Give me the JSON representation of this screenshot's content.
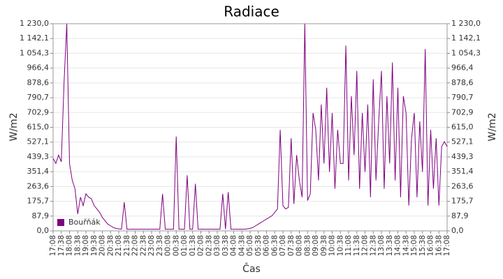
{
  "chart_data": {
    "type": "line",
    "title": "Radiace",
    "x_label": "Čas",
    "y_label": "W/m2",
    "y2_label": "W/m2",
    "categories": [
      "17:08",
      null,
      null,
      "17:38",
      null,
      null,
      "18:08",
      null,
      null,
      "18:38",
      null,
      null,
      "19:08",
      null,
      null,
      "19:38",
      null,
      null,
      "20:08",
      null,
      null,
      "20:38",
      null,
      null,
      "21:08",
      null,
      null,
      "21:38",
      null,
      null,
      "22:08",
      null,
      null,
      "22:38",
      null,
      null,
      "23:08",
      null,
      null,
      "23:38",
      null,
      null,
      "00:08",
      null,
      null,
      "00:38",
      null,
      null,
      "01:08",
      null,
      null,
      "01:38",
      null,
      null,
      "02:08",
      null,
      null,
      "02:38",
      null,
      null,
      "03:08",
      null,
      null,
      "03:38",
      null,
      null,
      "04:08",
      null,
      null,
      "04:38",
      null,
      null,
      "05:08",
      null,
      null,
      "05:38",
      null,
      null,
      "06:08",
      null,
      null,
      "06:38",
      null,
      null,
      "07:08",
      null,
      null,
      "07:38",
      null,
      null,
      "08:08",
      null,
      null,
      "08:38",
      null,
      null,
      "09:08",
      null,
      null,
      "09:38",
      null,
      null,
      "10:08",
      null,
      null,
      "10:38",
      null,
      null,
      "11:08",
      null,
      null,
      "11:38",
      null,
      null,
      "12:08",
      null,
      null,
      "12:38",
      null,
      null,
      "13:08",
      null,
      null,
      "13:38",
      null,
      null,
      "14:08",
      null,
      null,
      "14:38",
      null,
      null,
      "15:08",
      null,
      null,
      "15:38",
      null,
      null,
      "16:08",
      null,
      null,
      "16:38",
      null,
      null,
      "17:08"
    ],
    "series": [
      {
        "name": "Bouřňák",
        "color": "#800080",
        "values": [
          430,
          400,
          450,
          410,
          880,
          1230,
          400,
          300,
          250,
          100,
          200,
          150,
          220,
          200,
          190,
          150,
          130,
          110,
          80,
          60,
          40,
          30,
          20,
          15,
          12,
          10,
          170,
          10,
          10,
          10,
          10,
          10,
          10,
          10,
          10,
          10,
          10,
          10,
          10,
          10,
          220,
          10,
          10,
          10,
          10,
          560,
          10,
          10,
          10,
          330,
          10,
          10,
          280,
          10,
          10,
          10,
          10,
          10,
          10,
          10,
          10,
          10,
          220,
          10,
          230,
          10,
          10,
          10,
          10,
          10,
          10,
          12,
          15,
          20,
          30,
          40,
          50,
          60,
          70,
          80,
          90,
          110,
          130,
          600,
          150,
          130,
          140,
          550,
          160,
          450,
          300,
          200,
          1230,
          180,
          220,
          700,
          600,
          300,
          750,
          400,
          850,
          350,
          700,
          250,
          600,
          400,
          400,
          1100,
          300,
          800,
          450,
          950,
          250,
          700,
          350,
          750,
          200,
          900,
          300,
          650,
          950,
          250,
          800,
          400,
          1000,
          300,
          850,
          200,
          800,
          700,
          150,
          550,
          700,
          200,
          650,
          350,
          1080,
          150,
          600,
          250,
          550,
          150,
          500,
          530,
          500
        ]
      }
    ],
    "ylim": [
      0,
      1230
    ],
    "yticks": [
      {
        "value": 0,
        "label": "0,0"
      },
      {
        "value": 87.9,
        "label": "87,9"
      },
      {
        "value": 175.7,
        "label": "175,7"
      },
      {
        "value": 263.6,
        "label": "263,6"
      },
      {
        "value": 351.4,
        "label": "351,4"
      },
      {
        "value": 439.3,
        "label": "439,3"
      },
      {
        "value": 527.1,
        "label": "527,1"
      },
      {
        "value": 615.0,
        "label": "615,0"
      },
      {
        "value": 702.9,
        "label": "702,9"
      },
      {
        "value": 790.7,
        "label": "790,7"
      },
      {
        "value": 878.6,
        "label": "878,6"
      },
      {
        "value": 966.4,
        "label": "966,4"
      },
      {
        "value": 1054.3,
        "label": "1 054,3"
      },
      {
        "value": 1142.1,
        "label": "1 142,1"
      },
      {
        "value": 1230.0,
        "label": "1 230,0"
      }
    ],
    "grid": true,
    "legend": "lower left"
  }
}
